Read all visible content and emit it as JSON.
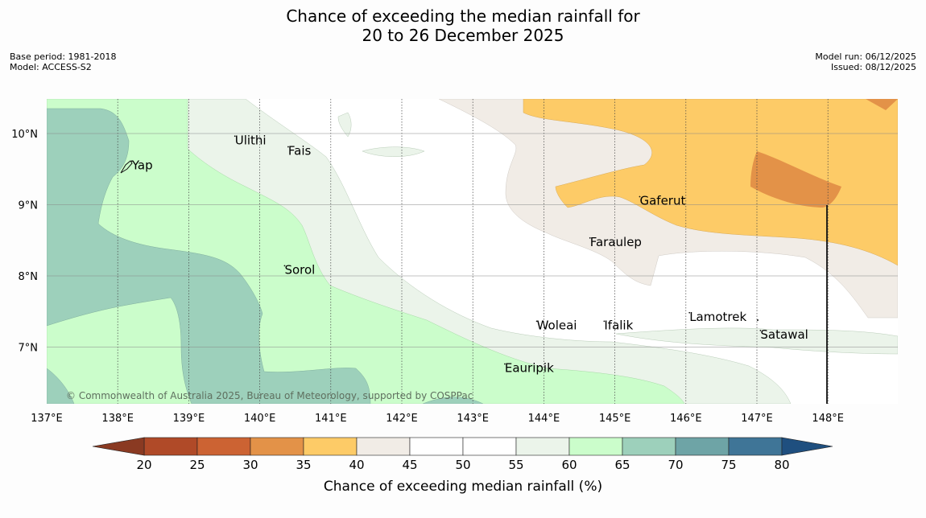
{
  "header": {
    "title_line1": "Chance of exceeding the median rainfall for",
    "title_line2": "20 to 26 December 2025",
    "base_period": "Base period: 1981-2018",
    "model": "Model: ACCESS-S2",
    "model_run": "Model run: 06/12/2025",
    "issued": "Issued: 08/12/2025"
  },
  "map": {
    "lon_range": [
      137.0,
      148.9
    ],
    "lat_range": [
      6.2,
      10.5
    ],
    "x_ticks": [
      "137°E",
      "138°E",
      "139°E",
      "140°E",
      "141°E",
      "142°E",
      "143°E",
      "144°E",
      "145°E",
      "146°E",
      "147°E",
      "148°E"
    ],
    "y_ticks": [
      "10°N",
      "9°N",
      "8°N",
      "7°N"
    ],
    "places": [
      {
        "name": "Yap",
        "lon": 138.2,
        "lat": 9.5
      },
      {
        "name": "Ulithi",
        "lon": 139.65,
        "lat": 9.85
      },
      {
        "name": "Fais",
        "lon": 140.4,
        "lat": 9.7
      },
      {
        "name": "Gaferut",
        "lon": 145.35,
        "lat": 9.0
      },
      {
        "name": "Faraulep",
        "lon": 144.65,
        "lat": 8.42
      },
      {
        "name": "Sorol",
        "lon": 140.35,
        "lat": 8.03
      },
      {
        "name": "Lamotrek",
        "lon": 146.05,
        "lat": 7.37
      },
      {
        "name": "Woleai",
        "lon": 143.9,
        "lat": 7.25
      },
      {
        "name": "Ifalik",
        "lon": 144.85,
        "lat": 7.25
      },
      {
        "name": "Satawal",
        "lon": 147.05,
        "lat": 7.12
      },
      {
        "name": "Eauripik",
        "lon": 143.45,
        "lat": 6.65
      }
    ],
    "copyright": "© Commonwealth of Australia 2025, Bureau of Meteorology, supported by COSPPac"
  },
  "colorbar": {
    "title": "Chance of exceeding median rainfall (%)",
    "ticks": [
      "20",
      "25",
      "30",
      "35",
      "40",
      "45",
      "50",
      "55",
      "60",
      "65",
      "70",
      "75",
      "80"
    ],
    "colors": [
      "#b04a28",
      "#cc6333",
      "#e39248",
      "#fdcb67",
      "#f1ece6",
      "#ffffff",
      "#ffffff",
      "#ebf4ea",
      "#cbfdcb",
      "#9dd0bb",
      "#6ea4a6",
      "#3f7597"
    ],
    "under_color": "#8a3a22",
    "over_color": "#1f4f7f"
  }
}
